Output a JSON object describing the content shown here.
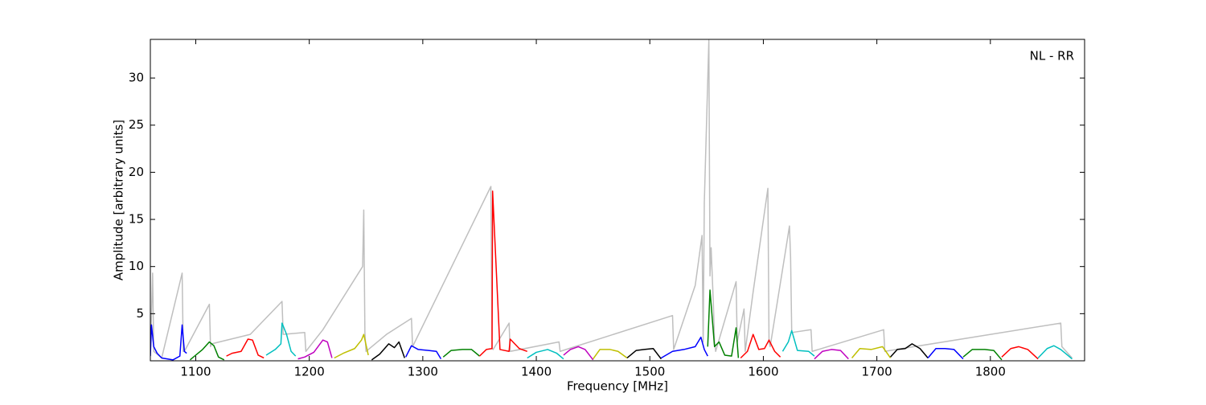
{
  "chart_data": {
    "type": "line",
    "xlabel": "Frequency [MHz]",
    "ylabel": "Amplitude [arbitrary units]",
    "annotation": "NL - RR",
    "xlim": [
      1060,
      1883
    ],
    "ylim": [
      0,
      34.1
    ],
    "xticks": [
      1100,
      1200,
      1300,
      1400,
      1500,
      1600,
      1700,
      1800
    ],
    "yticks": [
      5,
      10,
      15,
      20,
      25,
      30
    ],
    "series": [
      {
        "color": "#bfbfbf",
        "x": [
          1060,
          1062,
          1063,
          1070,
          1088,
          1089,
          1090,
          1112,
          1113,
          1114,
          1148,
          1176,
          1177,
          1196,
          1197,
          1212,
          1247,
          1248,
          1249,
          1250,
          1268,
          1290,
          1291,
          1360,
          1361,
          1362,
          1376,
          1377,
          1420,
          1421,
          1520,
          1521,
          1540,
          1546,
          1547,
          1548,
          1552,
          1553,
          1554,
          1556,
          1557,
          1558,
          1576,
          1577,
          1583,
          1584,
          1591,
          1604,
          1605,
          1606,
          1620,
          1623,
          1624,
          1625,
          1642,
          1643,
          1706,
          1707,
          1862,
          1863,
          1872
        ],
        "values": [
          0.5,
          9.3,
          1,
          0.3,
          9.3,
          1,
          1,
          6,
          1.5,
          1.8,
          2.8,
          6.3,
          2.8,
          3,
          1,
          3.3,
          10,
          16,
          3,
          1,
          2.8,
          4.5,
          1.5,
          18.5,
          1.3,
          1.2,
          4,
          1,
          2,
          1,
          4.8,
          1.2,
          8,
          13.3,
          2,
          16.8,
          34,
          9,
          12,
          6,
          2,
          1,
          8.4,
          2,
          5.5,
          1,
          7.3,
          18.3,
          2,
          1.5,
          12,
          14.3,
          11,
          3,
          3.3,
          1,
          3.3,
          1,
          4,
          1.5,
          0.3
        ]
      },
      {
        "color": "#0000ff",
        "x": [
          1060,
          1061,
          1063,
          1066,
          1070,
          1080,
          1086,
          1088,
          1090,
          1092
        ],
        "values": [
          0.5,
          3.8,
          1.5,
          0.8,
          0.3,
          0.1,
          0.5,
          3.8,
          1.0,
          0.8
        ]
      },
      {
        "color": "#008000",
        "x": [
          1095,
          1100,
          1106,
          1112,
          1116,
          1120,
          1125
        ],
        "values": [
          0.1,
          0.6,
          1.2,
          2.0,
          1.6,
          0.4,
          0.1
        ]
      },
      {
        "color": "#ff0000",
        "x": [
          1127,
          1132,
          1140,
          1146,
          1150,
          1155,
          1160
        ],
        "values": [
          0.5,
          0.8,
          1.0,
          2.3,
          2.2,
          0.6,
          0.3
        ]
      },
      {
        "color": "#00bfbf",
        "x": [
          1162,
          1170,
          1175,
          1176,
          1180,
          1184,
          1188
        ],
        "values": [
          0.6,
          1.2,
          1.8,
          4.0,
          2.8,
          1.0,
          0.5
        ]
      },
      {
        "color": "#bf00bf",
        "x": [
          1190,
          1196,
          1204,
          1212,
          1216,
          1220
        ],
        "values": [
          0.2,
          0.4,
          0.9,
          2.2,
          2.0,
          0.3
        ]
      },
      {
        "color": "#bfbf00",
        "x": [
          1222,
          1230,
          1240,
          1246,
          1248,
          1252
        ],
        "values": [
          0.3,
          0.8,
          1.3,
          2.2,
          2.8,
          0.6
        ]
      },
      {
        "color": "#000000",
        "x": [
          1255,
          1262,
          1270,
          1275,
          1279,
          1284
        ],
        "values": [
          0.1,
          0.7,
          1.8,
          1.4,
          2.0,
          0.3
        ]
      },
      {
        "color": "#0000ff",
        "x": [
          1285,
          1290,
          1296,
          1305,
          1312,
          1316
        ],
        "values": [
          0.4,
          1.6,
          1.2,
          1.1,
          1.0,
          0.2
        ]
      },
      {
        "color": "#008000",
        "x": [
          1318,
          1325,
          1335,
          1343,
          1350
        ],
        "values": [
          0.4,
          1.1,
          1.2,
          1.2,
          0.5
        ]
      },
      {
        "color": "#ff0000",
        "x": [
          1350,
          1356,
          1361,
          1361.5,
          1368,
          1376,
          1377,
          1385,
          1392
        ],
        "values": [
          0.5,
          1.2,
          1.3,
          18,
          1.2,
          1.0,
          2.3,
          1.3,
          1.0
        ]
      },
      {
        "color": "#00bfbf",
        "x": [
          1392,
          1400,
          1410,
          1418,
          1424
        ],
        "values": [
          0.3,
          0.9,
          1.2,
          0.8,
          0.2
        ]
      },
      {
        "color": "#bf00bf",
        "x": [
          1424,
          1430,
          1437,
          1443,
          1450
        ],
        "values": [
          0.6,
          1.2,
          1.5,
          1.2,
          0.1
        ]
      },
      {
        "color": "#bfbf00",
        "x": [
          1450,
          1456,
          1465,
          1472,
          1480
        ],
        "values": [
          0.2,
          1.2,
          1.2,
          1.0,
          0.3
        ]
      },
      {
        "color": "#000000",
        "x": [
          1480,
          1488,
          1495,
          1503,
          1510
        ],
        "values": [
          0.3,
          1.1,
          1.2,
          1.3,
          0.2
        ]
      },
      {
        "color": "#0000ff",
        "x": [
          1510,
          1520,
          1530,
          1540,
          1545,
          1548,
          1551
        ],
        "values": [
          0.3,
          1.0,
          1.2,
          1.5,
          2.5,
          1.2,
          0.5
        ]
      },
      {
        "color": "#008000",
        "x": [
          1551,
          1553,
          1557,
          1561,
          1566,
          1572,
          1576,
          1578
        ],
        "values": [
          1.5,
          7.5,
          1.5,
          2.0,
          0.6,
          0.5,
          3.5,
          0.3
        ]
      },
      {
        "color": "#ff0000",
        "x": [
          1580,
          1586,
          1591,
          1596,
          1601,
          1605,
          1610,
          1615
        ],
        "values": [
          0.3,
          1.0,
          2.8,
          1.2,
          1.3,
          2.2,
          1.0,
          0.4
        ]
      },
      {
        "color": "#00bfbf",
        "x": [
          1617,
          1622,
          1625,
          1630,
          1640,
          1645
        ],
        "values": [
          1.0,
          2.0,
          3.2,
          1.1,
          1.0,
          0.5
        ]
      },
      {
        "color": "#bf00bf",
        "x": [
          1645,
          1652,
          1660,
          1668,
          1675
        ],
        "values": [
          0.2,
          1.0,
          1.2,
          1.1,
          0.2
        ]
      },
      {
        "color": "#bfbf00",
        "x": [
          1678,
          1685,
          1695,
          1705,
          1712
        ],
        "values": [
          0.3,
          1.3,
          1.2,
          1.5,
          0.3
        ]
      },
      {
        "color": "#000000",
        "x": [
          1712,
          1718,
          1725,
          1731,
          1738,
          1745
        ],
        "values": [
          0.4,
          1.2,
          1.3,
          1.8,
          1.3,
          0.3
        ]
      },
      {
        "color": "#0000ff",
        "x": [
          1745,
          1752,
          1760,
          1768,
          1776
        ],
        "values": [
          0.3,
          1.3,
          1.3,
          1.2,
          0.2
        ]
      },
      {
        "color": "#008000",
        "x": [
          1776,
          1784,
          1795,
          1803,
          1810
        ],
        "values": [
          0.4,
          1.2,
          1.2,
          1.1,
          0.1
        ]
      },
      {
        "color": "#ff0000",
        "x": [
          1810,
          1818,
          1825,
          1833,
          1842
        ],
        "values": [
          0.4,
          1.3,
          1.5,
          1.2,
          0.2
        ]
      },
      {
        "color": "#00bfbf",
        "x": [
          1842,
          1850,
          1856,
          1862,
          1868,
          1872
        ],
        "values": [
          0.3,
          1.3,
          1.6,
          1.2,
          0.6,
          0.2
        ]
      }
    ]
  }
}
